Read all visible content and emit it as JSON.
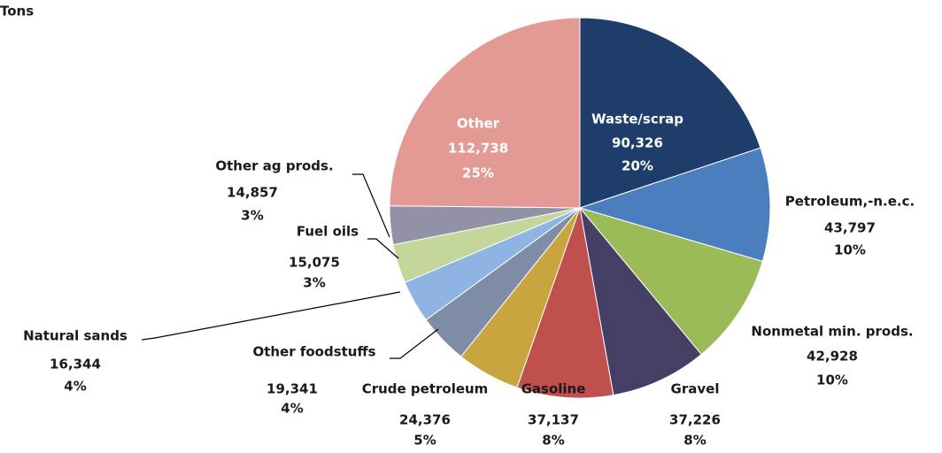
{
  "chart_data": {
    "type": "pie",
    "title": "Tons",
    "categories": [
      "Waste/scrap",
      "Petroleum,-n.e.c.",
      "Nonmetal min. prods.",
      "Gravel",
      "Gasoline",
      "Crude petroleum",
      "Other foodstuffs",
      "Natural sands",
      "Fuel oils",
      "Other ag prods.",
      "Other"
    ],
    "values": [
      90326,
      43797,
      42928,
      37226,
      37137,
      24376,
      19341,
      16344,
      15075,
      14857,
      112738
    ],
    "value_labels": [
      "90,326",
      "43,797",
      "42,928",
      "37,226",
      "37,137",
      "24,376",
      "19,341",
      "16,344",
      "15,075",
      "14,857",
      "112,738"
    ],
    "percent_labels": [
      "20%",
      "10%",
      "10%",
      "8%",
      "8%",
      "5%",
      "4%",
      "4%",
      "3%",
      "3%",
      "25%"
    ],
    "colors": [
      "#1f3d6b",
      "#4a7ebf",
      "#9bbb59",
      "#463f65",
      "#c0504d",
      "#c9a53f",
      "#7f8ca6",
      "#8eb4e3",
      "#c3d69b",
      "#9391a8",
      "#e39a95"
    ]
  }
}
